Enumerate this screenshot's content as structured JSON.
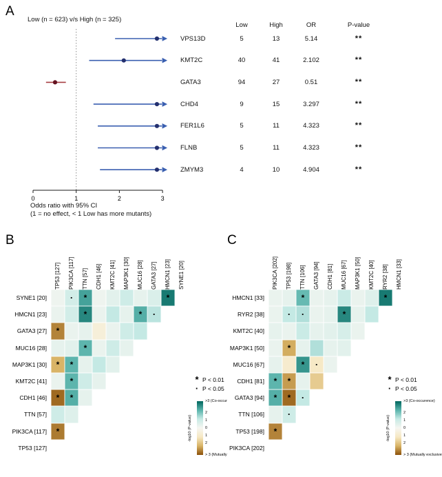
{
  "panels": {
    "a": "A",
    "b": "B",
    "c": "C"
  },
  "chart_data": [
    {
      "type": "forest",
      "title": "Low (n = 623) v/s High (n = 325)",
      "xlabel_line1": "Odds ratio with 95% CI",
      "xlabel_line2": "(1 = no effect, < 1 Low has more mutants)",
      "x_ticks": [
        0,
        1,
        2,
        3
      ],
      "x_range": [
        0,
        3
      ],
      "ref_line": 1,
      "columns": [
        "Low",
        "High",
        "OR",
        "P-value"
      ],
      "rows": [
        {
          "gene": "VPS13D",
          "low": "5",
          "high": "13",
          "or": "5.14",
          "p": "**",
          "group": "blue",
          "point": 2.87,
          "ci_low": 1.9,
          "ci_high": 3,
          "arrow": true
        },
        {
          "gene": "KMT2C",
          "low": "40",
          "high": "41",
          "or": "2.102",
          "p": "**",
          "group": "blue",
          "point": 2.102,
          "ci_low": 1.3,
          "ci_high": 3,
          "arrow": true
        },
        {
          "gene": "GATA3",
          "low": "94",
          "high": "27",
          "or": "0.51",
          "p": "**",
          "group": "red",
          "point": 0.51,
          "ci_low": 0.3,
          "ci_high": 0.76,
          "arrow": false
        },
        {
          "gene": "CHD4",
          "low": "9",
          "high": "15",
          "or": "3.297",
          "p": "**",
          "group": "blue",
          "point": 2.87,
          "ci_low": 1.4,
          "ci_high": 3,
          "arrow": true
        },
        {
          "gene": "FER1L6",
          "low": "5",
          "high": "11",
          "or": "4.323",
          "p": "**",
          "group": "blue",
          "point": 2.87,
          "ci_low": 1.5,
          "ci_high": 3,
          "arrow": true
        },
        {
          "gene": "FLNB",
          "low": "5",
          "high": "11",
          "or": "4.323",
          "p": "**",
          "group": "blue",
          "point": 2.87,
          "ci_low": 1.5,
          "ci_high": 3,
          "arrow": true
        },
        {
          "gene": "ZMYM3",
          "low": "4",
          "high": "10",
          "or": "4.904",
          "p": "**",
          "group": "blue",
          "point": 2.87,
          "ci_low": 1.55,
          "ci_high": 3,
          "arrow": true
        }
      ]
    },
    {
      "type": "heatmap",
      "panel": "B",
      "value_meaning": "signed -log10(P-value); positive = co-occurrence (teal), negative = mutually exclusive (brown)",
      "columns": [
        "TP53 [127]",
        "PIK3CA [117]",
        "TTN [57]",
        "CDH1 [46]",
        "KMT2C [41]",
        "MAP3K1 [30]",
        "MUC16 [28]",
        "GATA3 [27]",
        "HMCN1 [23]",
        "SYNE1 [20]"
      ],
      "rows": [
        "SYNE1 [20]",
        "HMCN1 [23]",
        "GATA3 [27]",
        "MUC16 [28]",
        "MAP3K1 [30]",
        "KMT2C [41]",
        "CDH1 [46]",
        "TTN [57]",
        "PIK3CA [117]",
        "TP53 [127]"
      ],
      "cells": [
        [
          [
            0.2,
            ""
          ],
          [
            0.9,
            "·"
          ],
          [
            2.6,
            "*"
          ],
          [
            0.2,
            ""
          ],
          [
            0.5,
            ""
          ],
          [
            1.0,
            ""
          ],
          [
            0.4,
            ""
          ],
          [
            0.7,
            ""
          ],
          [
            3.2,
            "*"
          ]
        ],
        [
          [
            0.3,
            ""
          ],
          [
            0.9,
            ""
          ],
          [
            3.0,
            "*"
          ],
          [
            0.3,
            ""
          ],
          [
            1.2,
            ""
          ],
          [
            0.4,
            ""
          ],
          [
            2.4,
            "*"
          ],
          [
            1.3,
            "·"
          ]
        ],
        [
          [
            -2.9,
            "*"
          ],
          [
            0.3,
            ""
          ],
          [
            0.4,
            ""
          ],
          [
            -0.6,
            ""
          ],
          [
            0.3,
            ""
          ],
          [
            1.0,
            ""
          ],
          [
            1.2,
            ""
          ]
        ],
        [
          [
            0.4,
            ""
          ],
          [
            0.5,
            ""
          ],
          [
            2.3,
            "*"
          ],
          [
            0.3,
            ""
          ],
          [
            1.0,
            ""
          ],
          [
            0.4,
            ""
          ]
        ],
        [
          [
            -2.3,
            "*"
          ],
          [
            2.3,
            "*"
          ],
          [
            0.4,
            ""
          ],
          [
            1.2,
            ""
          ],
          [
            0.5,
            ""
          ]
        ],
        [
          [
            0.3,
            ""
          ],
          [
            2.3,
            "*"
          ],
          [
            1.0,
            ""
          ],
          [
            0.4,
            ""
          ]
        ],
        [
          [
            -3.2,
            "*"
          ],
          [
            2.4,
            "*"
          ],
          [
            0.4,
            ""
          ]
        ],
        [
          [
            1.0,
            ""
          ],
          [
            0.6,
            ""
          ]
        ],
        [
          [
            -3.0,
            "*"
          ]
        ],
        []
      ]
    },
    {
      "type": "heatmap",
      "panel": "C",
      "value_meaning": "signed -log10(P-value); positive = co-occurrence (teal), negative = mutually exclusive (brown)",
      "columns": [
        "PIK3CA [202]",
        "TP53 [198]",
        "TTN [106]",
        "GATA3 [94]",
        "CDH1 [81]",
        "MUC16 [67]",
        "MAP3K1 [50]",
        "KMT2C [40]",
        "RYR2 [38]",
        "HMCN1 [33]"
      ],
      "rows": [
        "HMCN1 [33]",
        "RYR2 [38]",
        "KMT2C [40]",
        "MAP3K1 [50]",
        "MUC16 [67]",
        "CDH1 [81]",
        "GATA3 [94]",
        "TTN [106]",
        "TP53 [198]",
        "PIK3CA [202]"
      ],
      "cells": [
        [
          [
            0.3,
            ""
          ],
          [
            0.4,
            ""
          ],
          [
            2.2,
            "*"
          ],
          [
            0.3,
            ""
          ],
          [
            0.4,
            ""
          ],
          [
            1.1,
            ""
          ],
          [
            0.3,
            ""
          ],
          [
            0.6,
            ""
          ],
          [
            3.2,
            "*"
          ]
        ],
        [
          [
            0.3,
            ""
          ],
          [
            1.2,
            "·"
          ],
          [
            1.4,
            "·"
          ],
          [
            0.3,
            ""
          ],
          [
            0.4,
            ""
          ],
          [
            3.0,
            "*"
          ],
          [
            0.4,
            ""
          ],
          [
            1.2,
            ""
          ]
        ],
        [
          [
            0.4,
            ""
          ],
          [
            0.3,
            ""
          ],
          [
            1.1,
            ""
          ],
          [
            0.4,
            ""
          ],
          [
            0.5,
            ""
          ],
          [
            0.8,
            ""
          ],
          [
            0.3,
            ""
          ]
        ],
        [
          [
            0.3,
            ""
          ],
          [
            -2.4,
            "*"
          ],
          [
            0.4,
            ""
          ],
          [
            1.4,
            ""
          ],
          [
            0.4,
            ""
          ],
          [
            0.5,
            ""
          ]
        ],
        [
          [
            0.4,
            ""
          ],
          [
            -0.9,
            ""
          ],
          [
            2.8,
            "*"
          ],
          [
            -1.1,
            "·"
          ],
          [
            0.3,
            ""
          ]
        ],
        [
          [
            2.3,
            "*"
          ],
          [
            -2.6,
            "*"
          ],
          [
            0.4,
            ""
          ],
          [
            -1.8,
            ""
          ]
        ],
        [
          [
            2.4,
            "*"
          ],
          [
            -3.2,
            "*"
          ],
          [
            1.2,
            "·"
          ]
        ],
        [
          [
            0.4,
            ""
          ],
          [
            1.0,
            "·"
          ]
        ],
        [
          [
            -2.9,
            "*"
          ]
        ],
        []
      ]
    }
  ],
  "legend": {
    "significance": [
      {
        "symbol": "*",
        "label": "P < 0.01"
      },
      {
        "symbol": "·",
        "label": "P < 0.05"
      }
    ],
    "colorbar": {
      "axis_label": "-log10 (P-value)",
      "top_label": ">3 (Co-occurence)",
      "ticks": [
        "2",
        "1",
        "0",
        "1",
        "2"
      ],
      "bottom_label": "> 3 (Mutually exclusive)"
    }
  },
  "colors": {
    "forest_blue_line": "#3a5fb0",
    "forest_blue_point": "#232f6e",
    "forest_red_line": "#a63d40",
    "forest_red_point": "#641220",
    "axis": "#1a1a1a",
    "ref_line": "#8c8c8c",
    "teal_scale": [
      "#f6f6f1",
      "#c7eae5",
      "#5ab4ac",
      "#01665e"
    ],
    "brown_scale": [
      "#f6f6f1",
      "#f6e8c3",
      "#d8b365",
      "#8c510a"
    ],
    "marker": "#000000"
  }
}
